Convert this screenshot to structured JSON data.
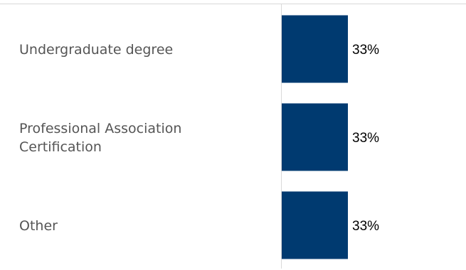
{
  "chart_data": {
    "type": "bar",
    "orientation": "horizontal",
    "categories": [
      [
        "Undergraduate degree"
      ],
      [
        "Professional Association",
        "Certification"
      ],
      [
        "Other"
      ]
    ],
    "values": [
      33,
      33,
      33
    ],
    "value_labels": [
      "33%",
      "33%",
      "33%"
    ],
    "bar_color": "#003a70",
    "axis_color": "#d9d9d9",
    "xlim": [
      0,
      100
    ],
    "grid": false,
    "legend": "none"
  }
}
